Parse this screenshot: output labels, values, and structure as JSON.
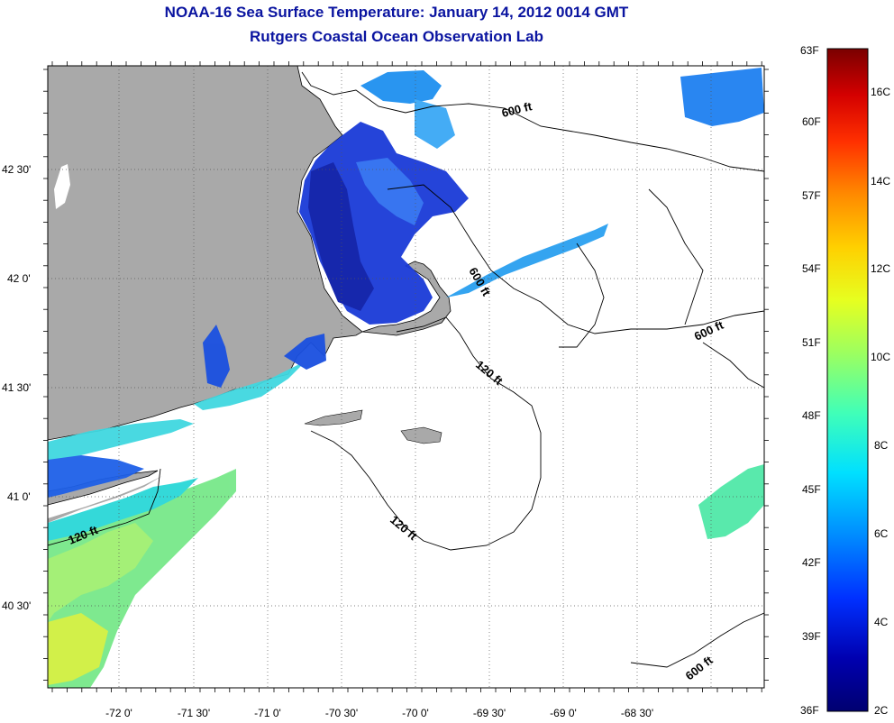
{
  "title": "NOAA-16 Sea Surface Temperature:  January 14, 2012 0014 GMT",
  "subtitle": "Rutgers Coastal Ocean Observation Lab",
  "longitude_labels": [
    "-72 0'",
    "-71 30'",
    "-71 0'",
    "-70 30'",
    "-70 0'",
    "-69 30'",
    "-69 0'",
    "-68 30'"
  ],
  "latitude_labels": [
    "42 30'",
    "42 0'",
    "41 30'",
    "41 0'",
    "40 30'"
  ],
  "isobath_labels": [
    "600 ft",
    "600 ft",
    "600 ft",
    "600 ft",
    "120 ft",
    "120 ft",
    "120 ft"
  ],
  "colorbar": {
    "fahrenheit_labels": [
      "63F",
      "60F",
      "57F",
      "54F",
      "51F",
      "48F",
      "45F",
      "42F",
      "39F",
      "36F"
    ],
    "celsius_labels": [
      "16C",
      "14C",
      "12C",
      "10C",
      "8C",
      "6C",
      "4C",
      "2C"
    ],
    "colors": [
      "#7a0000",
      "#d40000",
      "#ff3000",
      "#ff8a00",
      "#ffd000",
      "#e6ff20",
      "#9cff60",
      "#40ffb8",
      "#00e0ff",
      "#0090ff",
      "#0030ff",
      "#0000b0",
      "#000070"
    ]
  },
  "colors": {
    "land": "#a9a9a9",
    "title": "#0a14a0",
    "water_bg": "#ffffff"
  }
}
